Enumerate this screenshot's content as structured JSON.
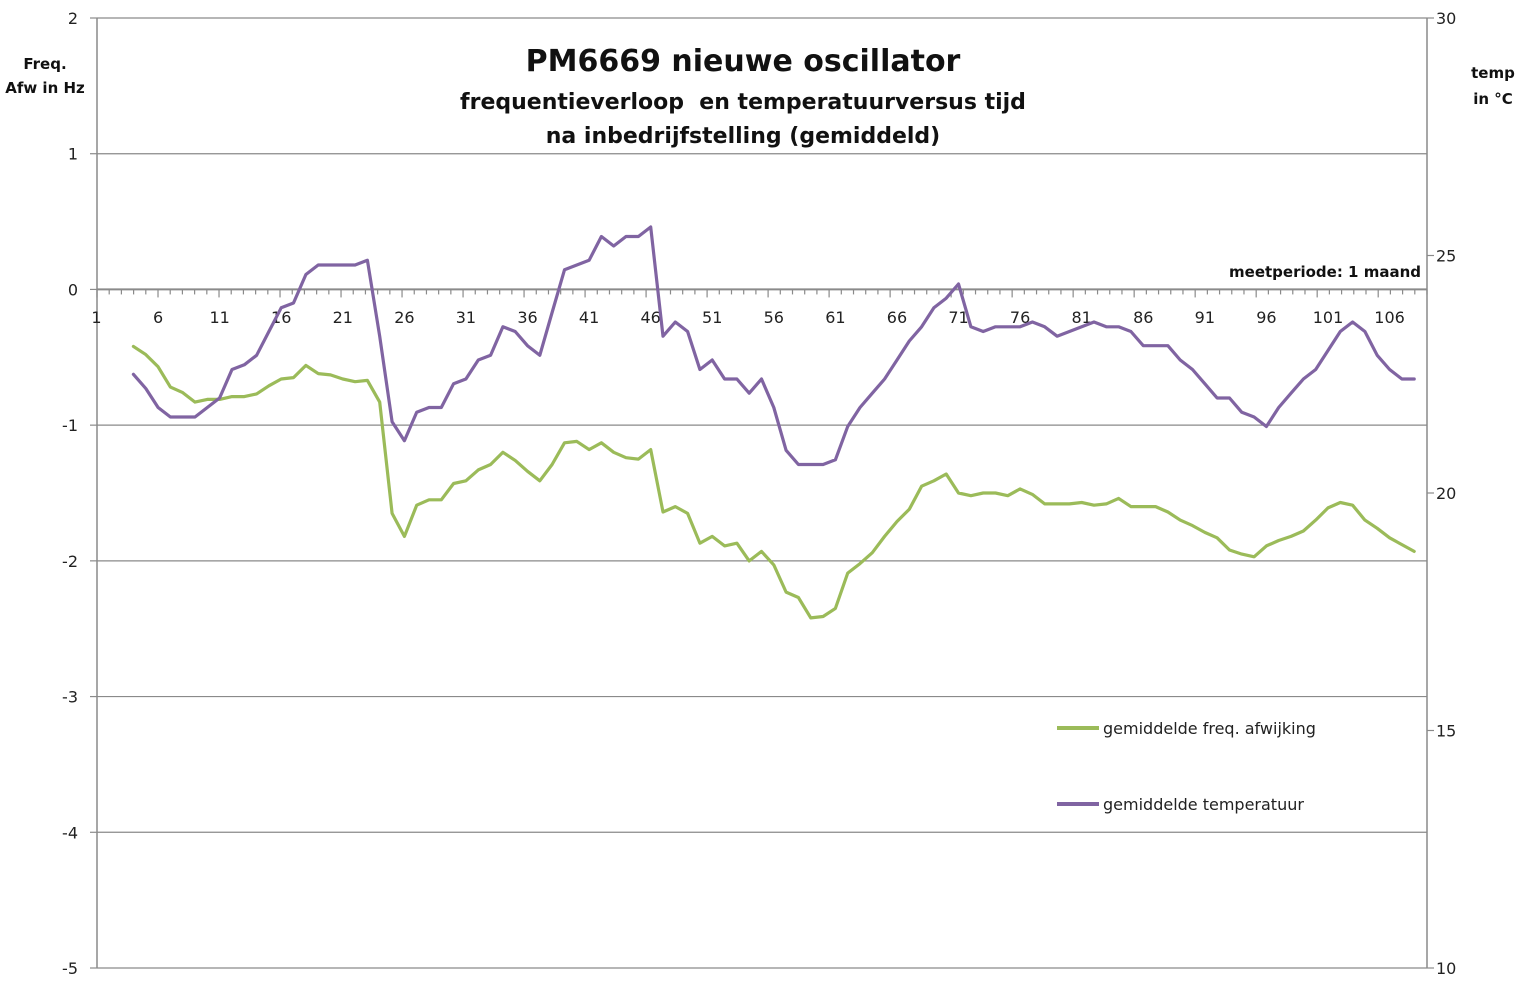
{
  "chart_data": {
    "type": "line",
    "title": "PM6669 nieuwe oscillator",
    "subtitle_lines": [
      "frequentieverloop  en temperatuurversus tijd",
      "na inbedrijfstelling (gemiddeld)"
    ],
    "ylabel_left": [
      "Freq.",
      "Afw in Hz"
    ],
    "ylabel_right": [
      "temp",
      "in °C"
    ],
    "annotation": "meetperiode: 1 maand",
    "y_left": {
      "min": -5,
      "max": 2,
      "ticks": [
        "2",
        "1",
        "0",
        "-1",
        "-2",
        "-3",
        "-4",
        "-5"
      ]
    },
    "y_right": {
      "min": 10,
      "max": 30,
      "ticks": [
        "30",
        "25",
        "20",
        "15",
        "10"
      ]
    },
    "x_range": [
      1,
      109
    ],
    "x_tick_labels": [
      "1",
      "6",
      "11",
      "16",
      "21",
      "26",
      "31",
      "36",
      "41",
      "46",
      "51",
      "56",
      "61",
      "66",
      "71",
      "76",
      "81",
      "86",
      "91",
      "96",
      "101",
      "106"
    ],
    "grid": true,
    "legend_position": "lower-right",
    "series": [
      {
        "name": "gemiddelde freq. afwijking",
        "color": "#9bbb59",
        "axis": "left",
        "x_start": 4,
        "values": [
          -0.42,
          -0.48,
          -0.57,
          -0.72,
          -0.76,
          -0.83,
          -0.81,
          -0.81,
          -0.79,
          -0.79,
          -0.77,
          -0.71,
          -0.66,
          -0.65,
          -0.56,
          -0.62,
          -0.63,
          -0.66,
          -0.68,
          -0.67,
          -0.83,
          -1.65,
          -1.82,
          -1.59,
          -1.55,
          -1.55,
          -1.43,
          -1.41,
          -1.33,
          -1.29,
          -1.2,
          -1.26,
          -1.34,
          -1.41,
          -1.29,
          -1.13,
          -1.12,
          -1.18,
          -1.13,
          -1.2,
          -1.24,
          -1.25,
          -1.18,
          -1.64,
          -1.6,
          -1.65,
          -1.87,
          -1.82,
          -1.89,
          -1.87,
          -2.0,
          -1.93,
          -2.03,
          -2.23,
          -2.27,
          -2.42,
          -2.41,
          -2.35,
          -2.09,
          -2.02,
          -1.94,
          -1.82,
          -1.71,
          -1.62,
          -1.45,
          -1.41,
          -1.36,
          -1.5,
          -1.52,
          -1.5,
          -1.5,
          -1.52,
          -1.47,
          -1.51,
          -1.58,
          -1.58,
          -1.58,
          -1.57,
          -1.59,
          -1.58,
          -1.54,
          -1.6,
          -1.6,
          -1.6,
          -1.64,
          -1.7,
          -1.74,
          -1.79,
          -1.83,
          -1.92,
          -1.95,
          -1.97,
          -1.89,
          -1.85,
          -1.82,
          -1.78,
          -1.7,
          -1.61,
          -1.57,
          -1.59,
          -1.7,
          -1.76,
          -1.83,
          -1.88,
          -1.93
        ]
      },
      {
        "name": "gemiddelde temperatuur",
        "color": "#8064a2",
        "axis": "right",
        "x_start": 4,
        "values": [
          22.5,
          22.2,
          21.8,
          21.6,
          21.6,
          21.6,
          21.8,
          22.0,
          22.6,
          22.7,
          22.9,
          23.4,
          23.9,
          24.0,
          24.6,
          24.8,
          24.8,
          24.8,
          24.8,
          24.9,
          23.3,
          21.5,
          21.1,
          21.7,
          21.8,
          21.8,
          22.3,
          22.4,
          22.8,
          22.9,
          23.5,
          23.4,
          23.1,
          22.9,
          23.8,
          24.7,
          24.8,
          24.9,
          25.4,
          25.2,
          25.4,
          25.4,
          25.6,
          23.3,
          23.6,
          23.4,
          22.6,
          22.8,
          22.4,
          22.4,
          22.1,
          22.4,
          21.8,
          20.9,
          20.6,
          20.6,
          20.6,
          20.7,
          21.4,
          21.8,
          22.1,
          22.4,
          22.8,
          23.2,
          23.5,
          23.9,
          24.1,
          24.4,
          23.5,
          23.4,
          23.5,
          23.5,
          23.5,
          23.6,
          23.5,
          23.3,
          23.4,
          23.5,
          23.6,
          23.5,
          23.5,
          23.4,
          23.1,
          23.1,
          23.1,
          22.8,
          22.6,
          22.3,
          22.0,
          22.0,
          21.7,
          21.6,
          21.4,
          21.8,
          22.1,
          22.4,
          22.6,
          23.0,
          23.4,
          23.6,
          23.4,
          22.9,
          22.6,
          22.4,
          22.4
        ]
      }
    ]
  }
}
